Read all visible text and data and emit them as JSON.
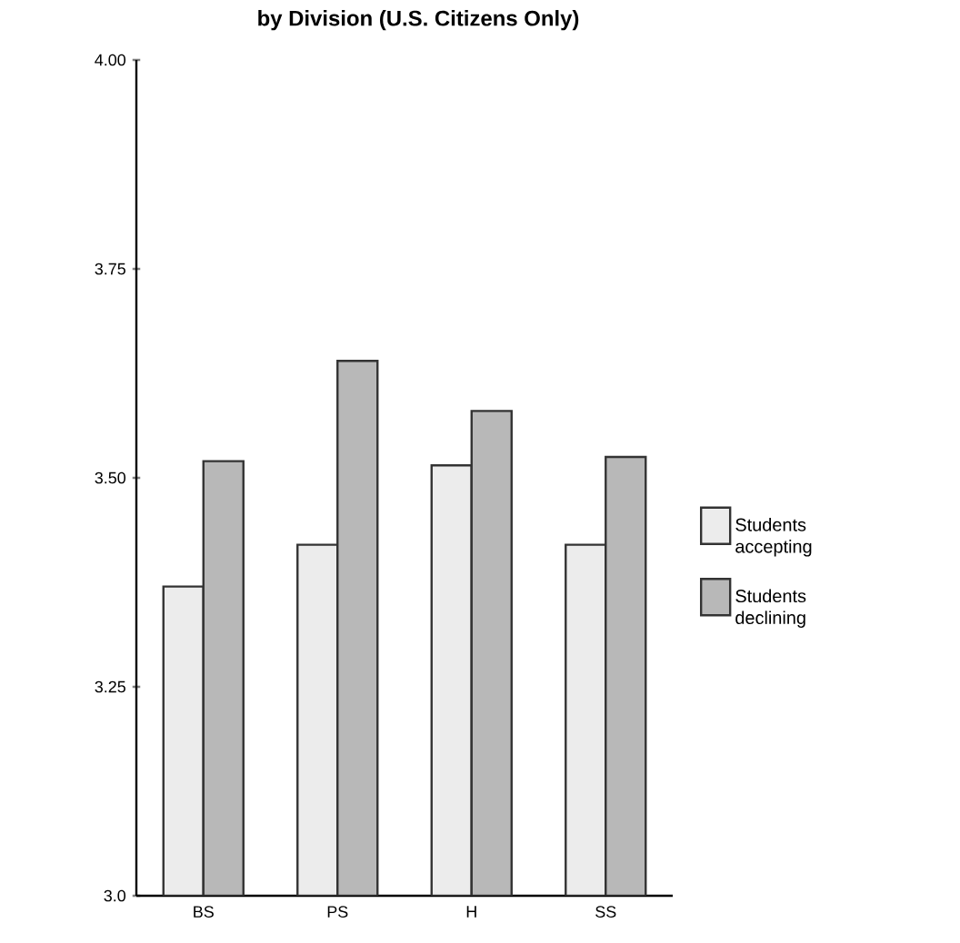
{
  "chart_data": {
    "type": "bar",
    "title": "by Division (U.S. Citizens Only)",
    "categories": [
      "BS",
      "PS",
      "H",
      "SS"
    ],
    "series": [
      {
        "name": "Students accepting",
        "color": "#ececec",
        "values": [
          3.37,
          3.42,
          3.515,
          3.42
        ]
      },
      {
        "name": "Students declining",
        "color": "#b8b8b8",
        "values": [
          3.52,
          3.64,
          3.58,
          3.525
        ]
      }
    ],
    "ylim": [
      3.0,
      4.0
    ],
    "yticks": [
      {
        "value": 3.0,
        "label": "3.0"
      },
      {
        "value": 3.25,
        "label": "3.25"
      },
      {
        "value": 3.5,
        "label": "3.50"
      },
      {
        "value": 3.75,
        "label": "3.75"
      },
      {
        "value": 4.0,
        "label": "4.00"
      }
    ],
    "grid": false,
    "legend": "right"
  }
}
